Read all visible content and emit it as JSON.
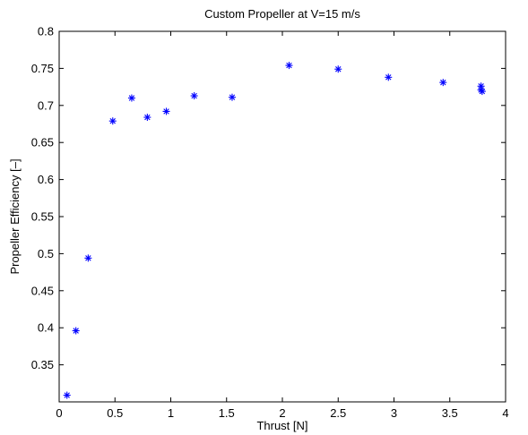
{
  "chart_data": {
    "type": "scatter",
    "title": "Custom Propeller at V=15 m/s",
    "xlabel": "Thrust [N]",
    "ylabel": "Propeller Efficiency [–]",
    "xlim": [
      0,
      4
    ],
    "ylim": [
      0.3,
      0.8
    ],
    "xticks": [
      0,
      0.5,
      1,
      1.5,
      2,
      2.5,
      3,
      3.5,
      4
    ],
    "xtick_labels": [
      "0",
      "0.5",
      "1",
      "1.5",
      "2",
      "2.5",
      "3",
      "3.5",
      "4"
    ],
    "yticks": [
      0.35,
      0.4,
      0.45,
      0.5,
      0.55,
      0.6,
      0.65,
      0.7,
      0.75,
      0.8
    ],
    "ytick_labels": [
      "0.35",
      "0.4",
      "0.45",
      "0.5",
      "0.55",
      "0.6",
      "0.65",
      "0.7",
      "0.75",
      "0.8"
    ],
    "grid": false,
    "marker": "asterisk",
    "marker_color": "#0000ff",
    "series": [
      {
        "x": [
          0.07,
          0.15,
          0.26,
          0.48,
          0.65,
          0.79,
          0.96,
          1.21,
          1.55,
          2.06,
          2.5,
          2.95,
          3.44,
          3.78,
          3.78,
          3.79
        ],
        "y": [
          0.309,
          0.396,
          0.494,
          0.679,
          0.71,
          0.684,
          0.692,
          0.713,
          0.711,
          0.754,
          0.749,
          0.738,
          0.731,
          0.726,
          0.721,
          0.719
        ]
      }
    ]
  }
}
